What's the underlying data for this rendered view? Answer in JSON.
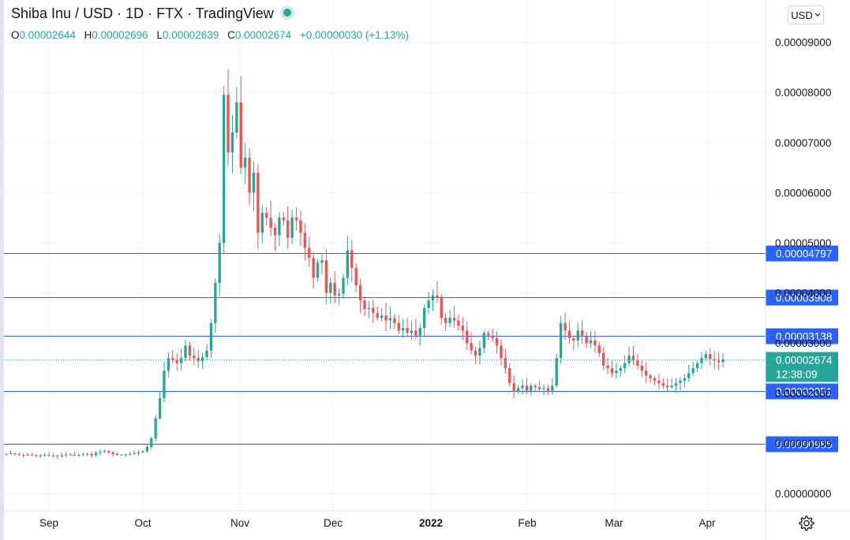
{
  "header": {
    "title": "Shiba Inu / USD · 1D · FTX · TradingView",
    "ohlc": {
      "open_key": "O",
      "open": "0.00002644",
      "high_key": "H",
      "high": "0.00002696",
      "low_key": "L",
      "low": "0.00002639",
      "close_key": "C",
      "close": "0.00002674",
      "change": "+0.00000030 (+1.13%)"
    },
    "currency": "USD"
  },
  "colors": {
    "up": "#26a69a",
    "down": "#ef5350",
    "hline": "#2962ff",
    "hline_label_bg": "#2962ff",
    "price_label_bg": "#26a69a"
  },
  "chart_data": {
    "type": "candlestick",
    "x_ticks": [
      "Sep",
      "Oct",
      "Nov",
      "Dec",
      "2022",
      "Feb",
      "Mar",
      "Apr"
    ],
    "y_ticks": [
      "0.00009000",
      "0.00008000",
      "0.00007000",
      "0.00006000",
      "0.00005000",
      "0.00004000",
      "0.00003000",
      "0.00002000",
      "0.00001000",
      "0.00000000"
    ],
    "ylim": [
      0,
      9.15e-05
    ],
    "horizontal_lines": [
      {
        "value": 4.797e-05,
        "label": "0.00004797"
      },
      {
        "value": 3.908e-05,
        "label": "0.00003908"
      },
      {
        "value": 3.138e-05,
        "label": "0.00003138"
      },
      {
        "value": 2.051e-05,
        "label": "0.00002051"
      },
      {
        "value": 9.85e-06,
        "label": "0.00000985"
      }
    ],
    "last_price": {
      "value": 2.674e-05,
      "label": "0.00002674",
      "countdown": "12:38:09"
    },
    "close_series_x1e8": [
      790,
      800,
      785,
      770,
      760,
      775,
      765,
      750,
      760,
      770,
      760,
      755,
      740,
      760,
      775,
      770,
      760,
      770,
      780,
      790,
      760,
      810,
      830,
      850,
      820,
      790,
      770,
      775,
      780,
      790,
      800,
      820,
      840,
      930,
      1100,
      1500,
      1900,
      2450,
      2700,
      2660,
      2600,
      2700,
      2950,
      2750,
      2700,
      2640,
      2720,
      2850,
      3400,
      4200,
      5000,
      7950,
      6800,
      7200,
      7800,
      6500,
      6700,
      6000,
      6400,
      5200,
      5600,
      5500,
      5300,
      5150,
      5500,
      5450,
      5100,
      5500,
      5450,
      5200,
      4900,
      4700,
      4300,
      4600,
      4650,
      4000,
      4200,
      3950,
      3980,
      4300,
      4850,
      4500,
      4150,
      3850,
      3680,
      3700,
      3600,
      3500,
      3550,
      3450,
      3500,
      3400,
      3250,
      3300,
      3200,
      3250,
      3150,
      3300,
      3700,
      3850,
      3950,
      3900,
      3500,
      3400,
      3500,
      3450,
      3350,
      3250,
      3000,
      2850,
      2750,
      2900,
      3200,
      3150,
      3100,
      2950,
      2700,
      2500,
      2200,
      2030,
      2100,
      2150,
      2050,
      2150,
      2120,
      2080,
      2100,
      2050,
      2150,
      2700,
      3400,
      3250,
      3100,
      3050,
      3250,
      3150,
      3000,
      3050,
      2950,
      2800,
      2550,
      2500,
      2400,
      2450,
      2500,
      2600,
      2750,
      2650,
      2550,
      2450,
      2350,
      2300,
      2250,
      2200,
      2150,
      2120,
      2150,
      2200,
      2250,
      2300,
      2400,
      2500,
      2600,
      2700,
      2780,
      2680,
      2650,
      2620,
      2674
    ]
  }
}
